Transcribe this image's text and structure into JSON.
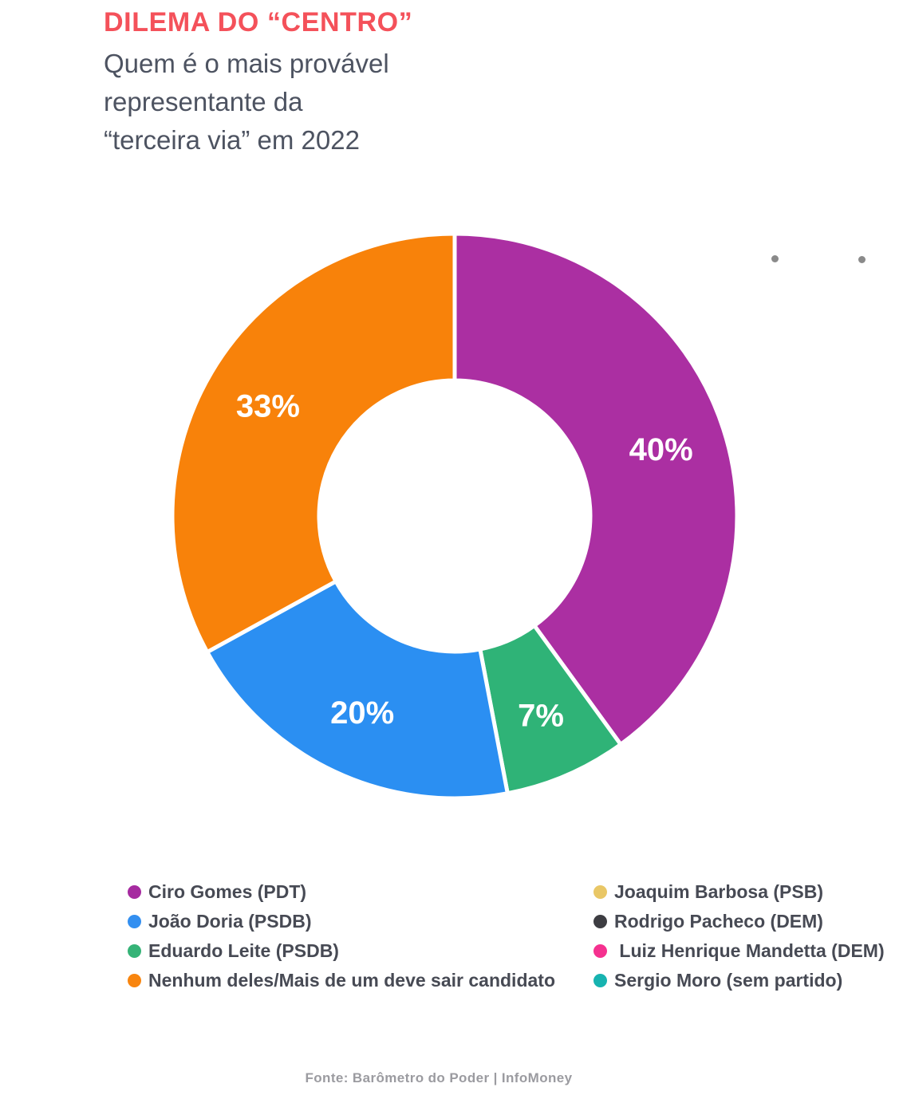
{
  "header": {
    "title": "DILEMA DO “CENTRO”",
    "title_color": "#F4515A",
    "subtitle_lines": [
      "Quem é o mais provável",
      "representante da",
      "“terceira via” em 2022"
    ]
  },
  "chart_data": {
    "type": "pie",
    "donut": true,
    "title": "DILEMA DO “CENTRO” — Quem é o mais provável representante da “terceira via” em 2022",
    "start_angle": "top",
    "direction": "clockwise",
    "slices": [
      {
        "label": "Ciro Gomes (PDT)",
        "value": 40,
        "display": "40%",
        "color": "#AB2FA2"
      },
      {
        "label": "Eduardo Leite (PSDB)",
        "value": 7,
        "display": "7%",
        "color": "#2FB377"
      },
      {
        "label": "João Doria (PSDB)",
        "value": 20,
        "display": "20%",
        "color": "#2B8FF2"
      },
      {
        "label": "Nenhum deles/Mais de um deve sair candidato",
        "value": 33,
        "display": "33%",
        "color": "#F8820A"
      }
    ],
    "legend_position": "bottom",
    "legend_entries": [
      "Ciro Gomes (PDT)",
      "João Doria (PSDB)",
      "Eduardo Leite (PSDB)",
      "Nenhum deles/Mais de um deve sair candidato",
      "Joaquim Barbosa (PSB)",
      "Rodrigo Pacheco (DEM)",
      "Luiz Henrique Mandetta (DEM)",
      "Sergio Moro (sem partido)"
    ]
  },
  "legend": {
    "left": [
      {
        "label": "Ciro Gomes (PDT)",
        "color": "#A62BA0"
      },
      {
        "label": "João Doria (PSDB)",
        "color": "#338FF0"
      },
      {
        "label": "Eduardo Leite (PSDB)",
        "color": "#35B377"
      },
      {
        "label": "Nenhum deles/Mais de um deve sair candidato",
        "color": "#F8850F"
      }
    ],
    "right": [
      {
        "label": "Joaquim Barbosa (PSB)",
        "color": "#E9C766"
      },
      {
        "label": "Rodrigo Pacheco (DEM)",
        "color": "#3D3D42"
      },
      {
        "label": " Luiz Henrique Mandetta (DEM)",
        "color": "#F5318F"
      },
      {
        "label": "Sergio Moro (sem partido)",
        "color": "#17B3B0"
      }
    ]
  },
  "footer": {
    "source": "Fonte: Barômetro do Poder | InfoMoney"
  }
}
